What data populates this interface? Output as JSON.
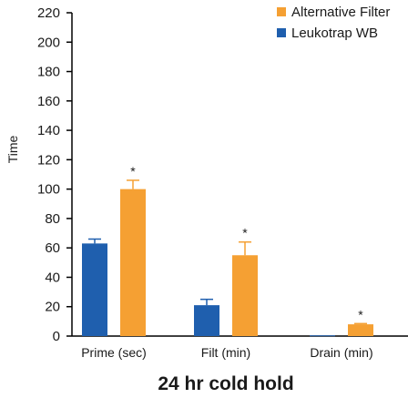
{
  "chart_data": {
    "type": "bar",
    "title": "",
    "xlabel": "24 hr cold hold",
    "ylabel": "Time",
    "ylim": [
      0,
      220
    ],
    "yticks": [
      0,
      20,
      40,
      60,
      80,
      100,
      120,
      140,
      160,
      180,
      200,
      220
    ],
    "categories": [
      "Prime (sec)",
      "Filt (min)",
      "Drain (min)"
    ],
    "series": [
      {
        "name": "Leukotrap WB",
        "color": "#1f5fae",
        "values": [
          63,
          21,
          0.5
        ],
        "errors": [
          3,
          4,
          0
        ]
      },
      {
        "name": "Alternative Filter",
        "color": "#f5a033",
        "values": [
          100,
          55,
          8
        ],
        "errors": [
          6,
          9,
          0.5
        ]
      }
    ],
    "significance": [
      "*",
      "*",
      "*"
    ],
    "legend_position": "top-right",
    "grid": false
  }
}
